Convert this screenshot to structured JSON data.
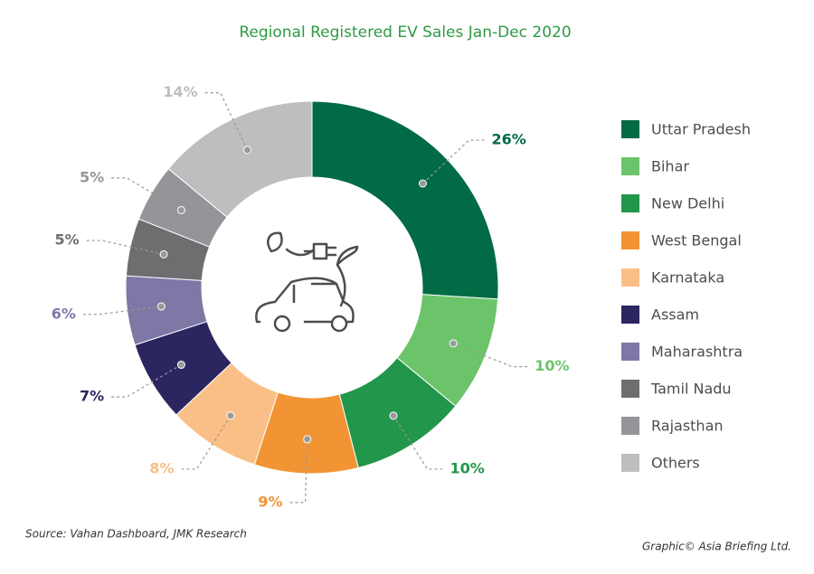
{
  "chart_data": {
    "type": "donut",
    "title": "Regional Registered EV Sales Jan-Dec 2020",
    "categories": [
      "Uttar Pradesh",
      "Bihar",
      "New Delhi",
      "West Bengal",
      "Karnataka",
      "Assam",
      "Maharashtra",
      "Tamil Nadu",
      "Rajasthan",
      "Others"
    ],
    "values": [
      26,
      10,
      10,
      9,
      8,
      7,
      6,
      5,
      5,
      14
    ],
    "value_labels": [
      "26%",
      "10%",
      "10%",
      "9%",
      "8%",
      "7%",
      "6%",
      "5%",
      "5%",
      "14%"
    ],
    "colors": [
      "#006b45",
      "#6cc46a",
      "#22964a",
      "#f29433",
      "#f9bf86",
      "#2b2660",
      "#7e78a6",
      "#6d6e70",
      "#939598",
      "#bcbec0"
    ],
    "legend": "right",
    "source": "Source: Vahan Dashboard, JMK Research",
    "credit": "Graphic© Asia Briefing Ltd."
  }
}
